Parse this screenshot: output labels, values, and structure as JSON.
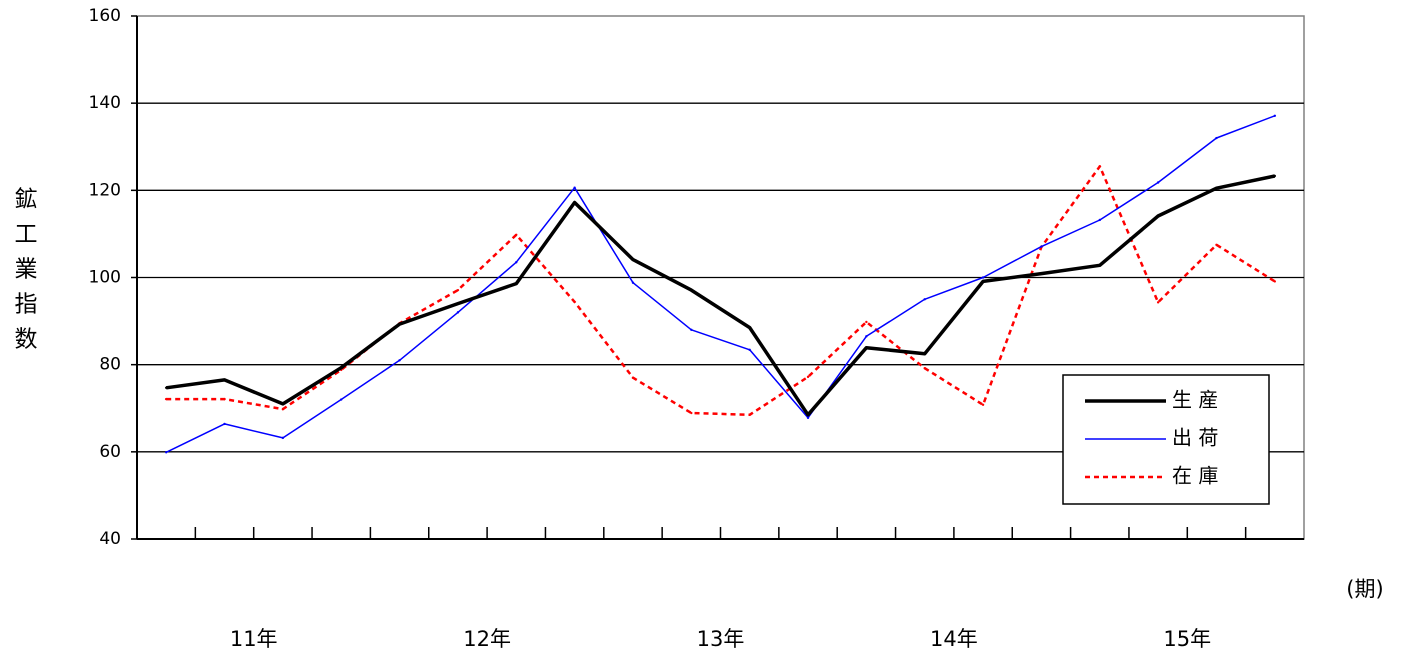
{
  "chart_data": {
    "type": "line",
    "ylabel": "鉱工業指数",
    "unit_label": "(期)",
    "ylim": [
      40,
      160
    ],
    "yticks": [
      40,
      60,
      80,
      100,
      120,
      140,
      160
    ],
    "grid": "horizontal",
    "legend_position": "right",
    "year_labels": [
      "11年",
      "12年",
      "13年",
      "14年",
      "15年"
    ],
    "x": [
      "11年 I",
      "11年 II",
      "11年 III",
      "11年 IV",
      "12年 I",
      "12年 II",
      "12年 III",
      "12年 IV",
      "13年 I",
      "13年 II",
      "13年 III",
      "13年 IV",
      "14年 I",
      "14年 II",
      "14年 III",
      "14年 IV",
      "15年 I",
      "15年 II",
      "15年 III",
      "15年 IV"
    ],
    "series": [
      {
        "name": "生 産",
        "color": "#000000",
        "style": "solid-thick",
        "values": [
          74.7,
          76.5,
          71.0,
          79.3,
          89.3,
          94.0,
          98.6,
          117.2,
          104.1,
          97.1,
          88.5,
          68.5,
          83.9,
          82.5,
          99.1,
          100.9,
          102.8,
          114.1,
          120.5,
          123.3
        ]
      },
      {
        "name": "出 荷",
        "color": "#0000ff",
        "style": "solid-thin",
        "values": [
          59.9,
          66.4,
          63.2,
          72.0,
          81.0,
          92.0,
          103.5,
          120.6,
          98.8,
          88.0,
          83.4,
          67.8,
          86.5,
          95.0,
          100.0,
          107.1,
          113.2,
          121.8,
          132.0,
          137.1
        ]
      },
      {
        "name": "在 庫",
        "color": "#ff0000",
        "style": "dashed",
        "values": [
          72.1,
          72.1,
          69.8,
          78.8,
          89.5,
          97.1,
          109.8,
          94.4,
          77.0,
          68.9,
          68.5,
          77.2,
          89.8,
          79.2,
          70.8,
          107.0,
          125.5,
          94.3,
          107.5,
          99.1
        ]
      }
    ]
  }
}
